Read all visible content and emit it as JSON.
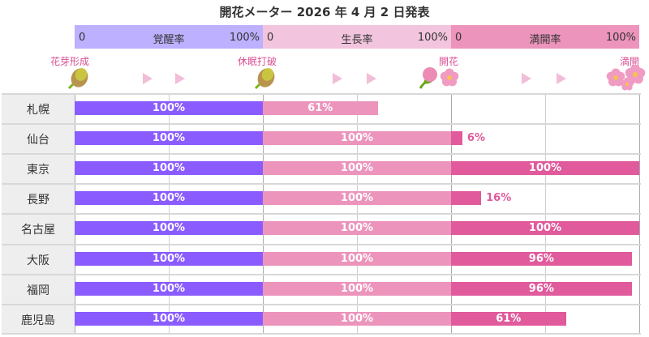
{
  "chart_data": {
    "type": "bar",
    "title": "開花メーター 2026 年 4 月 2 日発表",
    "categories": [
      "札幌",
      "仙台",
      "東京",
      "長野",
      "名古屋",
      "大阪",
      "福岡",
      "鹿児島"
    ],
    "series": [
      {
        "name": "覚醒率",
        "values": [
          100,
          100,
          100,
          100,
          100,
          100,
          100,
          100
        ],
        "color": "#8a5cff",
        "header_color": "#bdb0ff"
      },
      {
        "name": "生長率",
        "values": [
          61,
          100,
          100,
          100,
          100,
          100,
          100,
          100
        ],
        "color": "#ec94bc",
        "header_color": "#f2c4dd"
      },
      {
        "name": "満開率",
        "values": [
          0,
          6,
          100,
          16,
          100,
          96,
          96,
          61
        ],
        "color": "#e05a9c",
        "header_color": "#ec94bc"
      }
    ],
    "axis_min_label": "0",
    "axis_max_label": "100%",
    "xlim": [
      0,
      100
    ],
    "grid": true,
    "stages": [
      "花芽形成",
      "休眠打破",
      "開花",
      "満開"
    ],
    "stage_color": "#d94f94",
    "value_suffix": "%"
  }
}
